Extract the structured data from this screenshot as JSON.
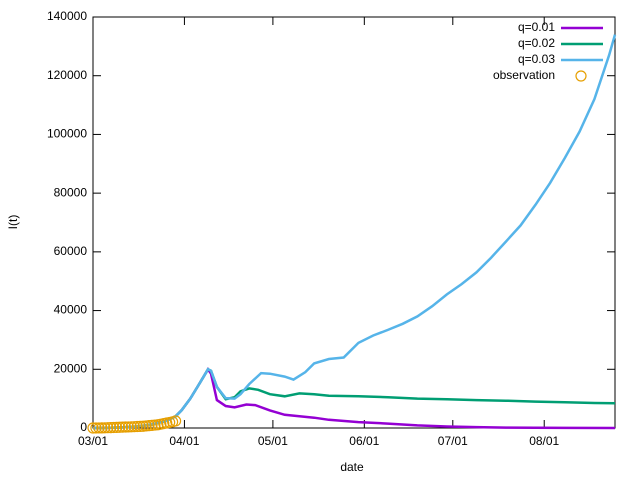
{
  "chart_data": {
    "type": "line",
    "xlabel": "date",
    "ylabel": "I(t)",
    "xlim": [
      0,
      177
    ],
    "xticks": [
      {
        "value": 0,
        "label": "03/01"
      },
      {
        "value": 31,
        "label": "04/01"
      },
      {
        "value": 61,
        "label": "05/01"
      },
      {
        "value": 92,
        "label": "06/01"
      },
      {
        "value": 122,
        "label": "07/01"
      },
      {
        "value": 153,
        "label": "08/01"
      }
    ],
    "ylim": [
      0,
      140000
    ],
    "yticks": [
      0,
      20000,
      40000,
      60000,
      80000,
      100000,
      120000,
      140000
    ],
    "legend": "top-right",
    "series": [
      {
        "name": "q=0.01",
        "color": "#9400d3",
        "style": "line",
        "x": [
          0,
          5,
          10,
          15,
          20,
          25,
          28,
          30,
          33,
          36,
          39,
          40,
          42,
          45,
          48,
          52,
          55,
          60,
          65,
          70,
          75,
          80,
          90,
          100,
          110,
          120,
          130,
          140,
          150,
          160,
          177
        ],
        "values": [
          0,
          50,
          200,
          500,
          1200,
          2500,
          4000,
          6000,
          10000,
          15000,
          20000,
          18500,
          9500,
          7500,
          7000,
          8000,
          7800,
          6000,
          4500,
          4000,
          3500,
          2800,
          2000,
          1500,
          900,
          500,
          300,
          150,
          80,
          40,
          10
        ]
      },
      {
        "name": "q=0.02",
        "color": "#009e73",
        "style": "line",
        "x": [
          0,
          5,
          10,
          15,
          20,
          25,
          28,
          30,
          33,
          36,
          39,
          40,
          42,
          45,
          48,
          50,
          53,
          56,
          60,
          65,
          70,
          75,
          80,
          90,
          100,
          110,
          120,
          130,
          140,
          150,
          160,
          170,
          177
        ],
        "values": [
          0,
          50,
          200,
          500,
          1200,
          2500,
          4000,
          6000,
          10000,
          15000,
          20000,
          19500,
          14000,
          9800,
          10500,
          12500,
          13500,
          13000,
          11500,
          10800,
          11800,
          11500,
          11000,
          10800,
          10500,
          10000,
          9800,
          9500,
          9300,
          9000,
          8800,
          8500,
          8400
        ]
      },
      {
        "name": "q=0.03",
        "color": "#56b4e9",
        "style": "line",
        "x": [
          0,
          5,
          10,
          15,
          20,
          25,
          28,
          30,
          33,
          36,
          39,
          40,
          42,
          45,
          48,
          50,
          53,
          57,
          60,
          65,
          68,
          72,
          75,
          80,
          85,
          90,
          95,
          100,
          105,
          110,
          115,
          120,
          125,
          130,
          135,
          140,
          145,
          150,
          155,
          160,
          165,
          170,
          175,
          177
        ],
        "values": [
          0,
          50,
          200,
          500,
          1200,
          2500,
          4000,
          6000,
          10000,
          15000,
          20000,
          19500,
          14000,
          10200,
          10000,
          11500,
          15000,
          18700,
          18500,
          17500,
          16500,
          19000,
          22000,
          23500,
          24000,
          29000,
          31500,
          33400,
          35500,
          38000,
          41500,
          45500,
          49000,
          53000,
          58000,
          63500,
          69000,
          76000,
          83500,
          92000,
          101000,
          112000,
          127000,
          134000
        ]
      },
      {
        "name": "observation",
        "color": "#e69f00",
        "style": "points",
        "x": [
          0,
          1,
          2,
          3,
          4,
          5,
          6,
          7,
          8,
          9,
          10,
          11,
          12,
          13,
          14,
          15,
          16,
          17,
          18,
          19,
          20,
          21,
          22,
          23,
          24,
          25,
          26,
          27,
          28
        ],
        "values": [
          0,
          10,
          20,
          40,
          60,
          100,
          130,
          180,
          220,
          250,
          300,
          330,
          360,
          400,
          450,
          500,
          550,
          600,
          700,
          800,
          900,
          1000,
          1100,
          1300,
          1500,
          1700,
          1900,
          2100,
          2400
        ]
      }
    ]
  }
}
